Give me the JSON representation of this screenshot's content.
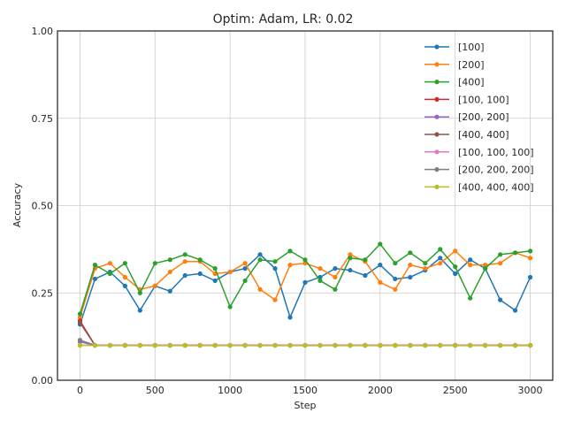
{
  "chart_data": {
    "type": "line",
    "title": "Optim: Adam, LR: 0.02",
    "xlabel": "Step",
    "ylabel": "Accuracy",
    "xlim": [
      -150,
      3150
    ],
    "ylim": [
      0,
      1
    ],
    "xticks": [
      0,
      500,
      1000,
      1500,
      2000,
      2500,
      3000
    ],
    "yticks": [
      0,
      0.25,
      0.5,
      0.75,
      1.0
    ],
    "ytick_labels": [
      "0.00",
      "0.25",
      "0.50",
      "0.75",
      "1.00"
    ],
    "grid": true,
    "legend_position": "top-right",
    "x": [
      0,
      100,
      200,
      300,
      400,
      500,
      600,
      700,
      800,
      900,
      1000,
      1100,
      1200,
      1300,
      1400,
      1500,
      1600,
      1700,
      1800,
      1900,
      2000,
      2100,
      2200,
      2300,
      2400,
      2500,
      2600,
      2700,
      2800,
      2900,
      3000
    ],
    "series": [
      {
        "name": "[100]",
        "color": "#1f77b4",
        "values": [
          0.16,
          0.29,
          0.31,
          0.27,
          0.2,
          0.27,
          0.255,
          0.3,
          0.305,
          0.285,
          0.31,
          0.32,
          0.36,
          0.32,
          0.18,
          0.28,
          0.295,
          0.32,
          0.315,
          0.3,
          0.33,
          0.29,
          0.295,
          0.315,
          0.35,
          0.305,
          0.345,
          0.32,
          0.23,
          0.2,
          0.295
        ]
      },
      {
        "name": "[200]",
        "color": "#ff7f0e",
        "values": [
          0.18,
          0.32,
          0.335,
          0.295,
          0.26,
          0.27,
          0.31,
          0.34,
          0.34,
          0.305,
          0.31,
          0.335,
          0.26,
          0.23,
          0.33,
          0.335,
          0.32,
          0.295,
          0.36,
          0.34,
          0.28,
          0.26,
          0.33,
          0.32,
          0.335,
          0.37,
          0.33,
          0.33,
          0.335,
          0.365,
          0.35
        ]
      },
      {
        "name": "[400]",
        "color": "#2ca02c",
        "values": [
          0.19,
          0.33,
          0.305,
          0.335,
          0.25,
          0.335,
          0.345,
          0.36,
          0.345,
          0.32,
          0.21,
          0.285,
          0.345,
          0.34,
          0.37,
          0.345,
          0.285,
          0.26,
          0.35,
          0.345,
          0.39,
          0.335,
          0.365,
          0.335,
          0.375,
          0.325,
          0.235,
          0.32,
          0.36,
          0.365,
          0.37
        ]
      },
      {
        "name": "[100, 100]",
        "color": "#d62728",
        "values": [
          0.17,
          0.1,
          0.1,
          0.1,
          0.1,
          0.1,
          0.1,
          0.1,
          0.1,
          0.1,
          0.1,
          0.1,
          0.1,
          0.1,
          0.1,
          0.1,
          0.1,
          0.1,
          0.1,
          0.1,
          0.1,
          0.1,
          0.1,
          0.1,
          0.1,
          0.1,
          0.1,
          0.1,
          0.1,
          0.1,
          0.1
        ]
      },
      {
        "name": "[200, 200]",
        "color": "#9467bd",
        "values": [
          0.11,
          0.1,
          0.1,
          0.1,
          0.1,
          0.1,
          0.1,
          0.1,
          0.1,
          0.1,
          0.1,
          0.1,
          0.1,
          0.1,
          0.1,
          0.1,
          0.1,
          0.1,
          0.1,
          0.1,
          0.1,
          0.1,
          0.1,
          0.1,
          0.1,
          0.1,
          0.1,
          0.1,
          0.1,
          0.1,
          0.1
        ]
      },
      {
        "name": "[400, 400]",
        "color": "#8c564b",
        "values": [
          0.165,
          0.1,
          0.1,
          0.1,
          0.1,
          0.1,
          0.1,
          0.1,
          0.1,
          0.1,
          0.1,
          0.1,
          0.1,
          0.1,
          0.1,
          0.1,
          0.1,
          0.1,
          0.1,
          0.1,
          0.1,
          0.1,
          0.1,
          0.1,
          0.1,
          0.1,
          0.1,
          0.1,
          0.1,
          0.1,
          0.1
        ]
      },
      {
        "name": "[100, 100, 100]",
        "color": "#e377c2",
        "values": [
          0.1,
          0.1,
          0.1,
          0.1,
          0.1,
          0.1,
          0.1,
          0.1,
          0.1,
          0.1,
          0.1,
          0.1,
          0.1,
          0.1,
          0.1,
          0.1,
          0.1,
          0.1,
          0.1,
          0.1,
          0.1,
          0.1,
          0.1,
          0.1,
          0.1,
          0.1,
          0.1,
          0.1,
          0.1,
          0.1,
          0.1
        ]
      },
      {
        "name": "[200, 200, 200]",
        "color": "#7f7f7f",
        "values": [
          0.115,
          0.1,
          0.1,
          0.1,
          0.1,
          0.1,
          0.1,
          0.1,
          0.1,
          0.1,
          0.1,
          0.1,
          0.1,
          0.1,
          0.1,
          0.1,
          0.1,
          0.1,
          0.1,
          0.1,
          0.1,
          0.1,
          0.1,
          0.1,
          0.1,
          0.1,
          0.1,
          0.1,
          0.1,
          0.1,
          0.1
        ]
      },
      {
        "name": "[400, 400, 400]",
        "color": "#bcbd22",
        "values": [
          0.1,
          0.1,
          0.1,
          0.1,
          0.1,
          0.1,
          0.1,
          0.1,
          0.1,
          0.1,
          0.1,
          0.1,
          0.1,
          0.1,
          0.1,
          0.1,
          0.1,
          0.1,
          0.1,
          0.1,
          0.1,
          0.1,
          0.1,
          0.1,
          0.1,
          0.1,
          0.1,
          0.1,
          0.1,
          0.1,
          0.1
        ]
      }
    ]
  }
}
